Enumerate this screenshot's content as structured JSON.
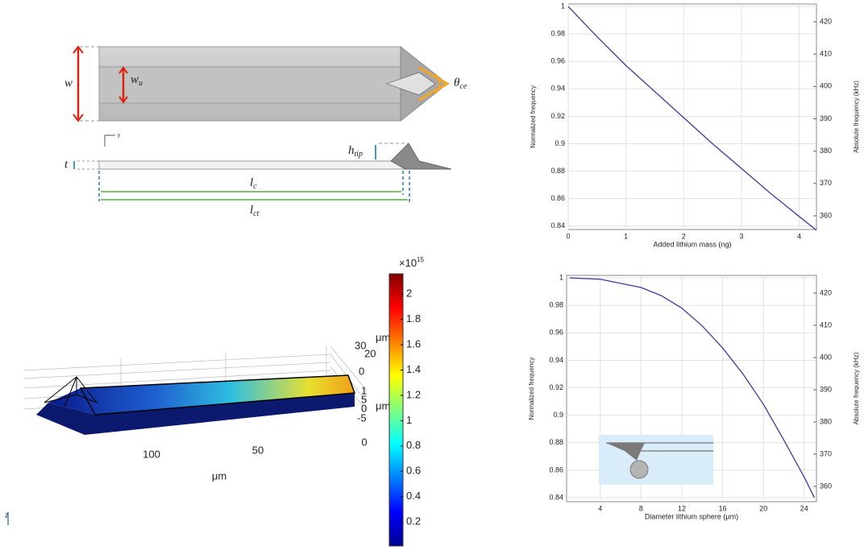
{
  "diagram": {
    "w": "w",
    "w_u": {
      "symbol": "w",
      "sub": "u"
    },
    "theta_ce": {
      "symbol": "θ",
      "sub": "ce"
    },
    "triad_label": "y",
    "h_tip": {
      "symbol": "h",
      "sub": "tip"
    },
    "t": "t",
    "l_c": {
      "symbol": "l",
      "sub": "c"
    },
    "l_ct": {
      "symbol": "l",
      "sub": "ct"
    }
  },
  "surface_plot": {
    "x_ticks": [
      "100",
      "50",
      "0"
    ],
    "x_label": "μm",
    "side_ticks": [
      "30",
      "20",
      "0",
      "1",
      "5",
      "0",
      "-5"
    ],
    "side_labels": [
      "μm",
      "μm"
    ],
    "axis_label": "z"
  },
  "chart_data": [
    {
      "type": "line",
      "x_label": "Added lithium mass (ng)",
      "y_label": "Normalized frequency",
      "y2_label": "Absolute frequency (kHz)",
      "x": [
        0,
        0.5,
        1,
        1.5,
        2,
        2.5,
        3,
        3.5,
        4,
        4.3
      ],
      "series": [
        {
          "color": "#3b3b98",
          "values": [
            1.0,
            0.978,
            0.957,
            0.938,
            0.919,
            0.9,
            0.882,
            0.864,
            0.847,
            0.837
          ]
        }
      ],
      "xlim": [
        0,
        4.3
      ],
      "xticks": [
        0,
        1,
        2,
        3,
        4
      ],
      "ylim": [
        0.8375,
        1.0018
      ],
      "yticks": [
        0.84,
        0.86,
        0.88,
        0.9,
        0.92,
        0.94,
        0.96,
        0.98,
        1
      ],
      "y2lim": [
        355.75,
        425.5
      ],
      "y2ticks": [
        360,
        370,
        380,
        390,
        400,
        410,
        420
      ],
      "grid": true
    },
    {
      "type": "line",
      "x_label": "Diameter lithium sphere (μm)",
      "y_label": "Normalized frequency",
      "y2_label": "Absolute frequency (kHz)",
      "x": [
        1,
        4,
        8,
        10,
        12,
        14,
        16,
        18,
        20,
        22,
        24,
        25
      ],
      "series": [
        {
          "color": "#3b3b98",
          "values": [
            1.0,
            0.999,
            0.993,
            0.987,
            0.978,
            0.965,
            0.949,
            0.93,
            0.908,
            0.882,
            0.855,
            0.84
          ]
        }
      ],
      "xlim": [
        0.7,
        25.2
      ],
      "xticks": [
        4,
        8,
        12,
        16,
        20,
        24
      ],
      "ylim": [
        0.8371,
        1.0018
      ],
      "yticks": [
        0.84,
        0.86,
        0.88,
        0.9,
        0.92,
        0.94,
        0.96,
        0.98,
        1
      ],
      "y2lim": [
        355.25,
        425.5
      ],
      "y2ticks": [
        360,
        370,
        380,
        390,
        400,
        410,
        420
      ],
      "grid": true
    },
    {
      "type": "colorbar",
      "colormap": "jet",
      "exponent": {
        "base": "×10",
        "power": "15"
      },
      "ylim": [
        0.01,
        2.16
      ],
      "yticks": [
        0.2,
        0.4,
        0.6,
        0.8,
        1,
        1.2,
        1.4,
        1.6,
        1.8,
        2
      ]
    }
  ]
}
